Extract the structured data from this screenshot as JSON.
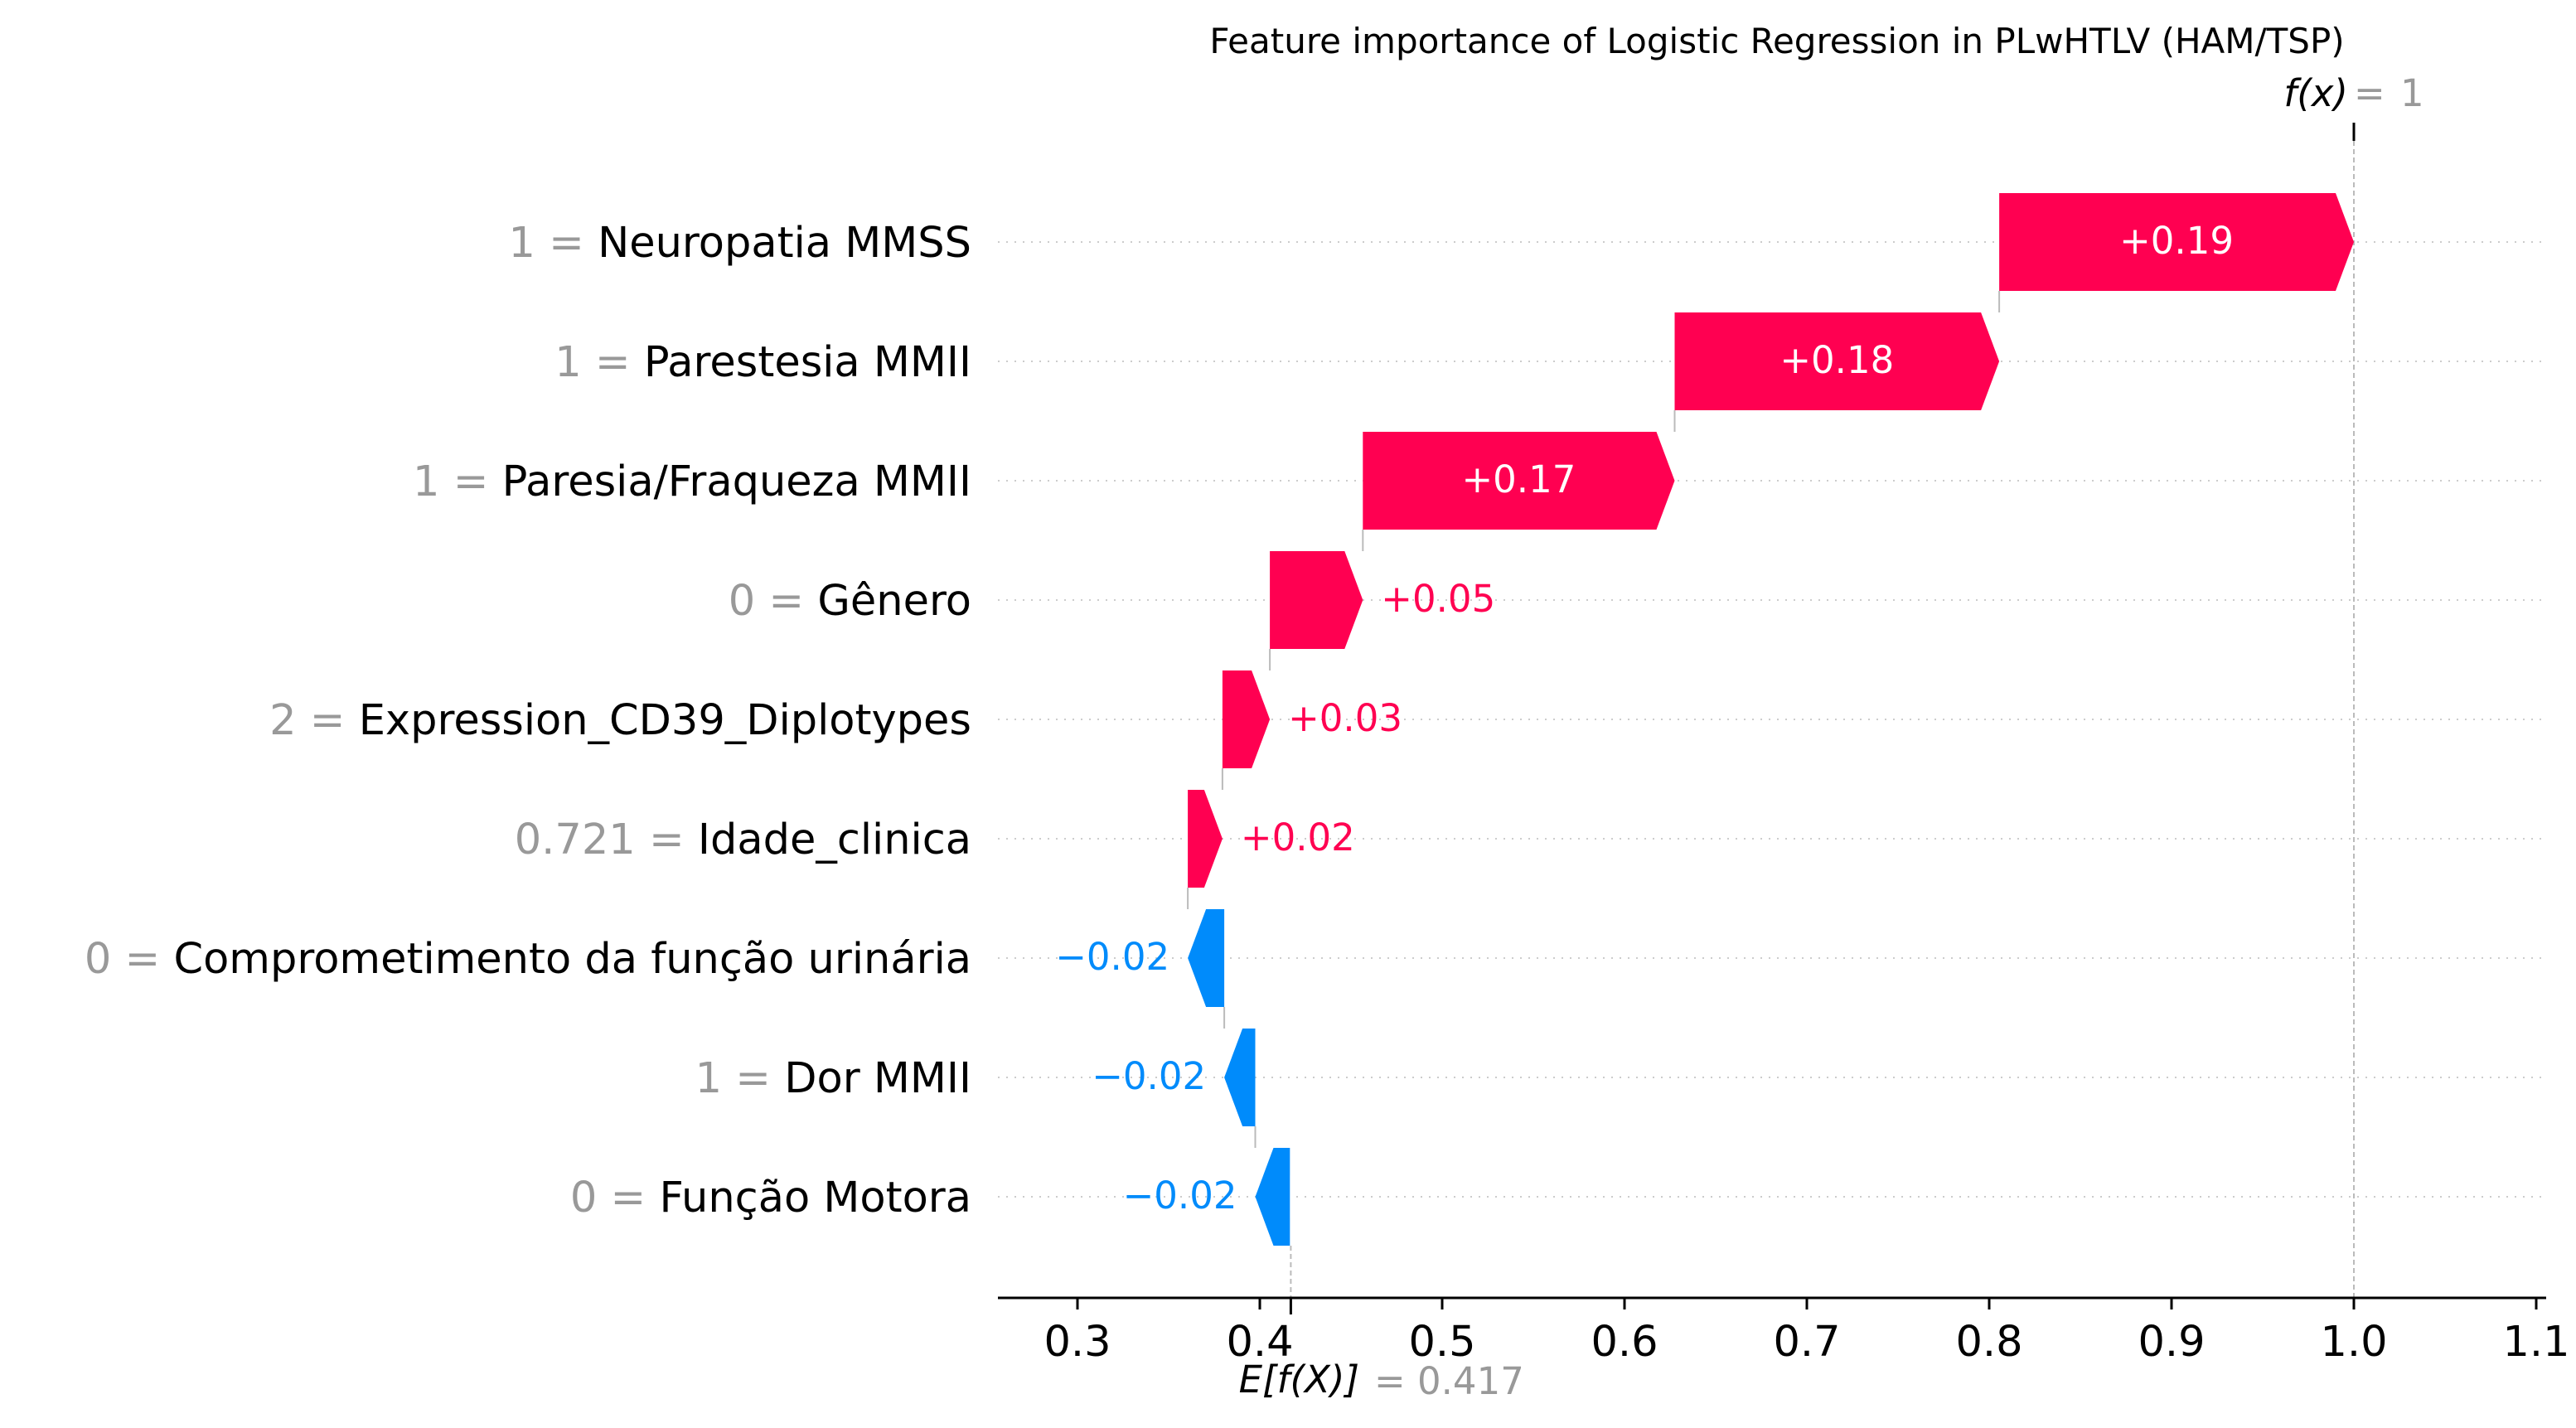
{
  "chart_data": {
    "type": "waterfall",
    "title": "Feature importance of Logistic Regression in PLwHTLV (HAM/TSP)",
    "fx_label": "f(x)",
    "fx_value": "1",
    "ex_label": "E[f(X)]",
    "ex_value": "0.417",
    "base_value": 0.417,
    "final_value": 1.0,
    "xlim": [
      0.256,
      1.11
    ],
    "xticks": [
      0.3,
      0.4,
      0.5,
      0.6,
      0.7,
      0.8,
      0.9,
      1.0,
      1.1
    ],
    "xtick_labels": [
      "0.3",
      "0.4",
      "0.5",
      "0.6",
      "0.7",
      "0.8",
      "0.9",
      "1.0",
      "1.1"
    ],
    "features": [
      {
        "value": "1",
        "name": "Neuropatia MMSS",
        "start": 0.8055,
        "end": 1.0,
        "label": "+0.19"
      },
      {
        "value": "1",
        "name": "Parestesia MMII",
        "start": 0.6275,
        "end": 0.8055,
        "label": "+0.18"
      },
      {
        "value": "1",
        "name": "Paresia/Fraqueza MMII",
        "start": 0.4565,
        "end": 0.6275,
        "label": "+0.17"
      },
      {
        "value": "0",
        "name": "Gênero",
        "start": 0.4055,
        "end": 0.4565,
        "label": "+0.05"
      },
      {
        "value": "2",
        "name": "Expression_CD39_Diplotypes",
        "start": 0.3795,
        "end": 0.4055,
        "label": "+0.03"
      },
      {
        "value": "0.721",
        "name": "Idade_clinica",
        "start": 0.3605,
        "end": 0.3795,
        "label": "+0.02"
      },
      {
        "value": "0",
        "name": "Comprometimento da função urinária",
        "start": 0.3805,
        "end": 0.3605,
        "label": "−0.02"
      },
      {
        "value": "1",
        "name": "Dor MMII",
        "start": 0.3975,
        "end": 0.3805,
        "label": "−0.02"
      },
      {
        "value": "0",
        "name": "Função Motora",
        "start": 0.4165,
        "end": 0.3975,
        "label": "−0.02"
      }
    ],
    "colors": {
      "positive": "#ff0051",
      "negative": "#008bfb",
      "grid": "#cccccc",
      "muted": "#999999"
    },
    "grid": true
  }
}
